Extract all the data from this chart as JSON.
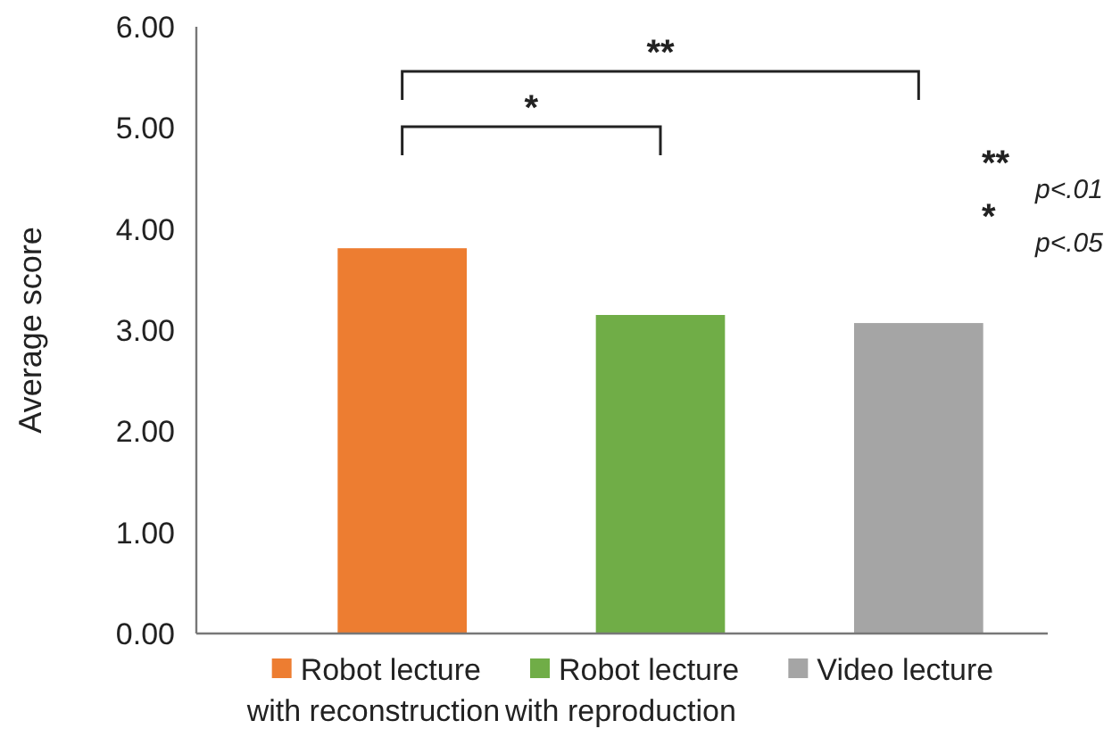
{
  "chart_data": {
    "type": "bar",
    "ylabel": "Average score",
    "categories": [
      "Robot lecture with reconstruction",
      "Robot lecture with reproduction",
      "Video lecture"
    ],
    "values": [
      3.81,
      3.15,
      3.07
    ],
    "colors": [
      "#ed7d31",
      "#70ad47",
      "#a5a5a5"
    ],
    "ylim": [
      0,
      6
    ],
    "yticks": [
      {
        "value": 0,
        "label": "0.00"
      },
      {
        "value": 1,
        "label": "1.00"
      },
      {
        "value": 2,
        "label": "2.00"
      },
      {
        "value": 3,
        "label": "3.00"
      },
      {
        "value": 4,
        "label": "4.00"
      },
      {
        "value": 5,
        "label": "5.00"
      },
      {
        "value": 6,
        "label": "6.00"
      }
    ],
    "grid": false,
    "annotations": [
      "**",
      "*",
      "** $_{p<.01}$",
      "* $_{p<.05}$"
    ]
  }
}
